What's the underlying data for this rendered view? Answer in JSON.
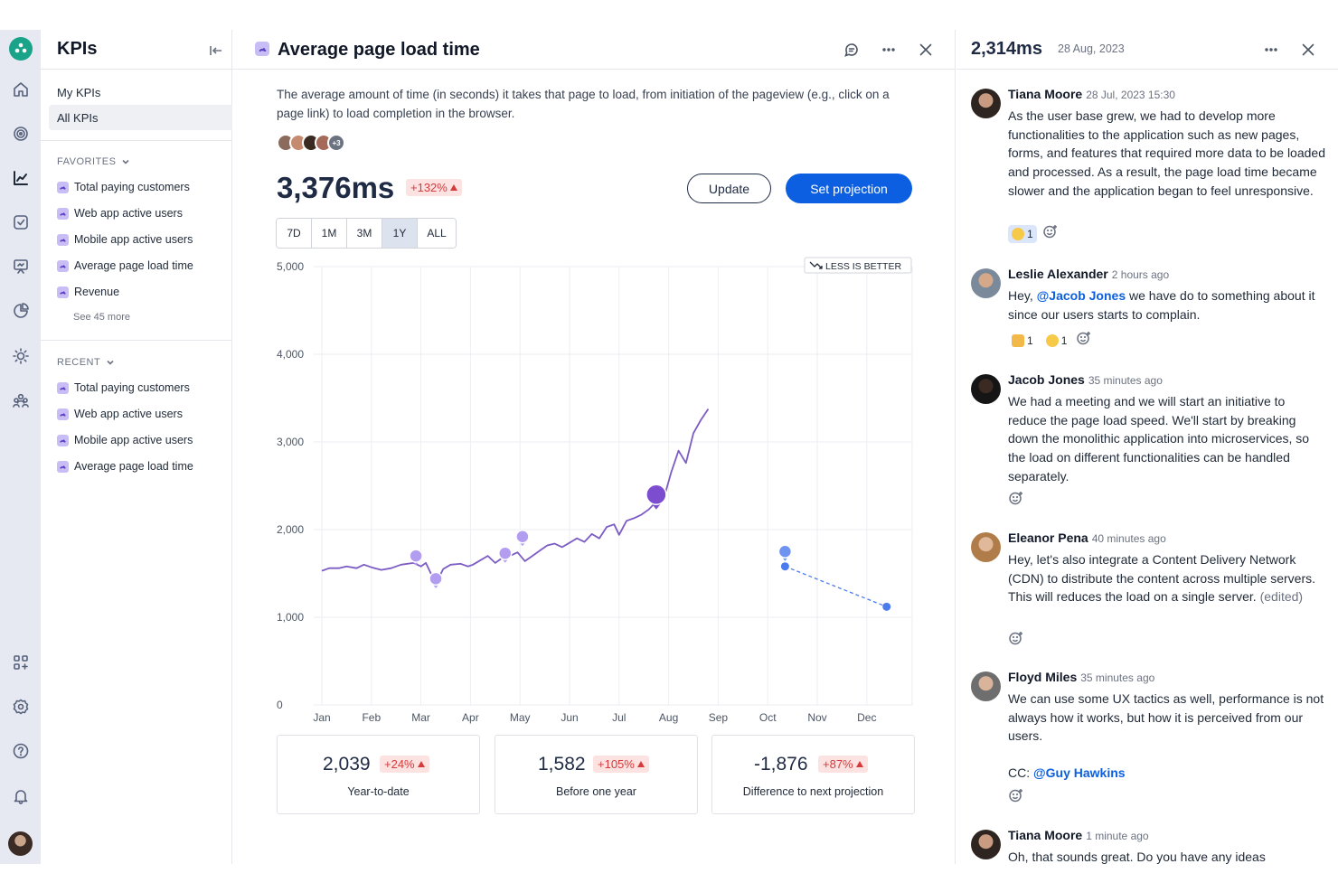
{
  "sidebar": {
    "title": "KPIs",
    "nav": [
      "My KPIs",
      "All KPIs"
    ],
    "favorites_label": "FAVORITES",
    "favorites": [
      "Total paying customers",
      "Web app active users",
      "Mobile app active users",
      "Average page load time",
      "Revenue"
    ],
    "see_more": "See 45 more",
    "recent_label": "RECENT",
    "recent": [
      "Total paying customers",
      "Web app active users",
      "Mobile app active users",
      "Average page load time"
    ]
  },
  "rail": {
    "icons": [
      "home-icon",
      "target-icon",
      "chart-icon",
      "checkbox-icon",
      "presentation-icon",
      "pie-chart-icon",
      "lightbulb-icon",
      "team-icon",
      "apps-icon",
      "settings-icon",
      "help-icon",
      "bell-icon"
    ],
    "active": "chart-icon"
  },
  "main": {
    "title": "Average page load time",
    "description": "The average amount of time (in seconds) it takes that page to load, from initiation of the pageview (e.g., click on a page link) to load completion in the browser.",
    "avatars_more": "+3",
    "value": "3,376ms",
    "change": "+132%",
    "update_label": "Update",
    "projection_label": "Set projection",
    "ranges": [
      "7D",
      "1M",
      "3M",
      "1Y",
      "ALL"
    ],
    "selected_range": "1Y",
    "less_is_better": "LESS IS BETTER",
    "stats": [
      {
        "value": "2,039",
        "change": "+24%",
        "label": "Year-to-date"
      },
      {
        "value": "1,582",
        "change": "+105%",
        "label": "Before one year"
      },
      {
        "value": "-1,876",
        "change": "+87%",
        "label": "Difference to next projection"
      }
    ],
    "colors": {
      "line": "#7c5cc4",
      "projection": "#4b7bec",
      "accent": "#0b5fe0",
      "negative": "#d43b3b"
    }
  },
  "chart_data": {
    "type": "line",
    "x_categories": [
      "Jan",
      "Feb",
      "Mar",
      "Apr",
      "May",
      "Jun",
      "Jul",
      "Aug",
      "Sep",
      "Oct",
      "Nov",
      "Dec"
    ],
    "y_ticks": [
      "0",
      "1,000",
      "2,000",
      "3,000",
      "4,000",
      "5,000"
    ],
    "ylim": [
      0,
      5000
    ],
    "grid": true,
    "series": [
      {
        "x": [
          0,
          0.15,
          0.35,
          0.5,
          0.7,
          0.85,
          1,
          1.2,
          1.4,
          1.6,
          1.85,
          2.0,
          2.1,
          2.2,
          2.25,
          2.35,
          2.45,
          2.6,
          2.8,
          2.95,
          3.05,
          3.2,
          3.35,
          3.5,
          3.65,
          3.8,
          3.95,
          4.1,
          4.25,
          4.4,
          4.55,
          4.7,
          4.85,
          5.0,
          5.15,
          5.3,
          5.45,
          5.6,
          5.75,
          5.9,
          6.0,
          6.15,
          6.3,
          6.45,
          6.6,
          6.75,
          6.9,
          7.05,
          7.2,
          7.35,
          7.5,
          7.65,
          7.8
        ],
        "y": [
          1530,
          1560,
          1560,
          1580,
          1560,
          1600,
          1570,
          1540,
          1560,
          1600,
          1620,
          1580,
          1620,
          1500,
          1440,
          1440,
          1550,
          1600,
          1610,
          1580,
          1600,
          1650,
          1700,
          1620,
          1680,
          1700,
          1740,
          1640,
          1700,
          1760,
          1820,
          1840,
          1800,
          1850,
          1900,
          1860,
          1950,
          1900,
          2030,
          2060,
          1940,
          2100,
          2130,
          2170,
          2230,
          2320,
          2350,
          2650,
          2900,
          2760,
          3100,
          3250,
          3376
        ]
      },
      {
        "name": "projection",
        "x": [
          9.35,
          11.4
        ],
        "y": [
          1580,
          1120
        ]
      }
    ],
    "annotations": [
      {
        "x": 1.9,
        "y": 1700
      },
      {
        "x": 2.3,
        "y": 1440
      },
      {
        "x": 3.7,
        "y": 1730
      },
      {
        "x": 4.05,
        "y": 1920
      },
      {
        "x": 6.75,
        "y": 2400
      },
      {
        "x": 9.35,
        "y": 1750
      }
    ]
  },
  "comments_panel": {
    "value": "2,314ms",
    "date": "28 Aug, 2023",
    "comments": [
      {
        "name": "Tiana Moore",
        "time": "28 Jul, 2023 15:30",
        "text": "As the user base grew, we had to develop more functionalities to the application such as new pages, forms, and features that required more data to be loaded and processed. As a result, the page load time became slower and the application began to feel unresponsive.",
        "reactions": [
          {
            "type": "laugh-emoji",
            "count": "1",
            "on": true
          }
        ]
      },
      {
        "name": "Leslie Alexander",
        "time": "2 hours ago",
        "pre": "Hey, ",
        "mention": "@Jacob Jones",
        "post": " we have do to something about it since our users starts to complain.",
        "reactions": [
          {
            "type": "thumbs-up-emoji",
            "count": "1",
            "on": false
          },
          {
            "type": "laugh-emoji",
            "count": "1",
            "on": false
          }
        ]
      },
      {
        "name": "Jacob Jones",
        "time": "35 minutes ago",
        "text": "We had a meeting and we will start an initiative to reduce the page load speed. We'll start by breaking down the monolithic application into microservices, so the load on different functionalities can be handled separately."
      },
      {
        "name": "Eleanor Pena",
        "time": "40 minutes ago",
        "text": "Hey, let's also integrate a Content Delivery Network (CDN) to distribute the content across multiple servers. This will reduces the load on a single server.",
        "edited": " (edited)"
      },
      {
        "name": "Floyd Miles",
        "time": "35 minutes ago",
        "text": "We can use some UX tactics as well, performance is not always how it works, but how it is perceived from our users.",
        "cc_label": "CC: ",
        "cc_mention": "@Guy Hawkins"
      },
      {
        "name": "Tiana Moore",
        "time": "1 minute ago",
        "text": "Oh, that sounds great. Do you have any ideas"
      }
    ]
  }
}
